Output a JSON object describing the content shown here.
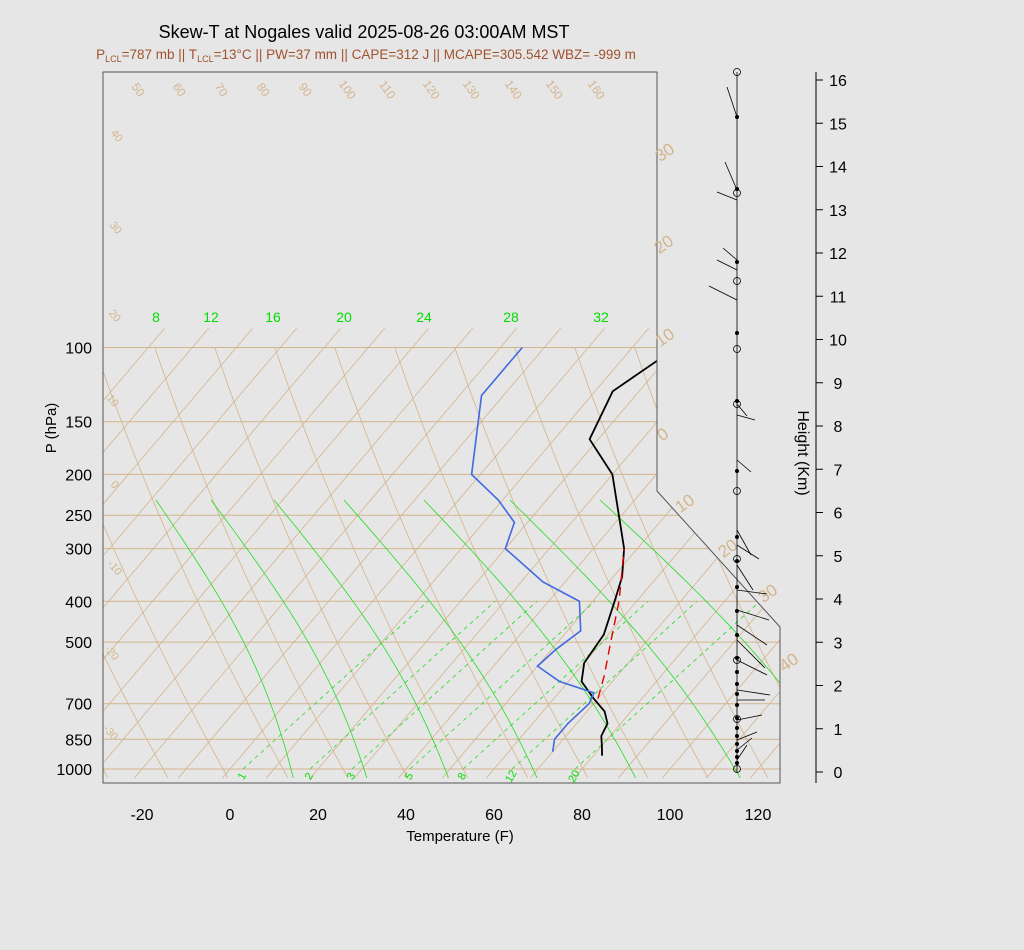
{
  "chart_data": {
    "type": "skew-t sounding",
    "title": "Skew-T at Nogales valid 2025-08-26 03:00AM MST",
    "subtitle": {
      "p_lcl": "787 mb",
      "t_lcl": "13°C",
      "pw": "37 mm",
      "cape": "312 J",
      "mcape": "305.542",
      "wbz": "-999 m"
    },
    "xlabel": "Temperature (F)",
    "ylabel": "P (hPa)",
    "y2label": "Height (Km)",
    "x_ticks": [
      "-20",
      "0",
      "20",
      "40",
      "60",
      "80",
      "100",
      "120"
    ],
    "p_ticks": [
      "100",
      "150",
      "200",
      "250",
      "300",
      "400",
      "500",
      "700",
      "850",
      "1000"
    ],
    "height_ticks": [
      "0",
      "1",
      "2",
      "3",
      "4",
      "5",
      "6",
      "7",
      "8",
      "9",
      "10",
      "11",
      "12",
      "13",
      "14",
      "15",
      "16"
    ],
    "mixing_ratio_labels": [
      "1",
      "2",
      "3",
      "5",
      "8",
      "12",
      "20"
    ],
    "wetbulb_labels": [
      "8",
      "12",
      "16",
      "20",
      "24",
      "28",
      "32"
    ],
    "isotherm_labels": [
      "50",
      "60",
      "70",
      "80",
      "90",
      "100",
      "110",
      "120",
      "130",
      "140",
      "150",
      "160"
    ],
    "dry_adiabat_left_labels": [
      "40",
      "30",
      "20",
      "10",
      "0",
      "-10",
      "-20",
      "-30"
    ],
    "dry_adiabat_right_labels": [
      "30",
      "20",
      "10",
      "0",
      "10",
      "20",
      "30",
      "40"
    ],
    "temperature_f": [
      {
        "p": 930,
        "t": 82
      },
      {
        "p": 880,
        "t": 80
      },
      {
        "p": 835,
        "t": 78
      },
      {
        "p": 780,
        "t": 77
      },
      {
        "p": 730,
        "t": 74
      },
      {
        "p": 680,
        "t": 69
      },
      {
        "p": 620,
        "t": 63
      },
      {
        "p": 560,
        "t": 60
      },
      {
        "p": 480,
        "t": 59
      },
      {
        "p": 400,
        "t": 55
      },
      {
        "p": 350,
        "t": 52
      },
      {
        "p": 300,
        "t": 47
      },
      {
        "p": 260,
        "t": 41
      },
      {
        "p": 200,
        "t": 30
      },
      {
        "p": 165,
        "t": 18
      },
      {
        "p": 127,
        "t": 14
      },
      {
        "p": 100,
        "t": 20
      }
    ],
    "dewpoint_f": [
      {
        "p": 910,
        "t": 70
      },
      {
        "p": 850,
        "t": 68
      },
      {
        "p": 780,
        "t": 68
      },
      {
        "p": 700,
        "t": 69
      },
      {
        "p": 660,
        "t": 68
      },
      {
        "p": 620,
        "t": 58
      },
      {
        "p": 570,
        "t": 50
      },
      {
        "p": 520,
        "t": 51
      },
      {
        "p": 470,
        "t": 53
      },
      {
        "p": 400,
        "t": 47
      },
      {
        "p": 360,
        "t": 35
      },
      {
        "p": 300,
        "t": 20
      },
      {
        "p": 260,
        "t": 17
      },
      {
        "p": 230,
        "t": 9
      },
      {
        "p": 200,
        "t": -2
      },
      {
        "p": 130,
        "t": -15
      },
      {
        "p": 100,
        "t": -15
      }
    ],
    "parcel_f": [
      {
        "p": 680,
        "t": 70
      },
      {
        "p": 600,
        "t": 67
      },
      {
        "p": 500,
        "t": 62
      },
      {
        "p": 400,
        "t": 56
      },
      {
        "p": 330,
        "t": 50
      },
      {
        "p": 300,
        "t": 47
      }
    ],
    "colors": {
      "temperature": "#000000",
      "dewpoint": "#4169e1",
      "parcel": "#e00000",
      "isotherm": "#d4b48c",
      "moist_adiabat": "#22dd22",
      "title_sub": "#a0522d",
      "label_green": "#00dd00"
    }
  }
}
